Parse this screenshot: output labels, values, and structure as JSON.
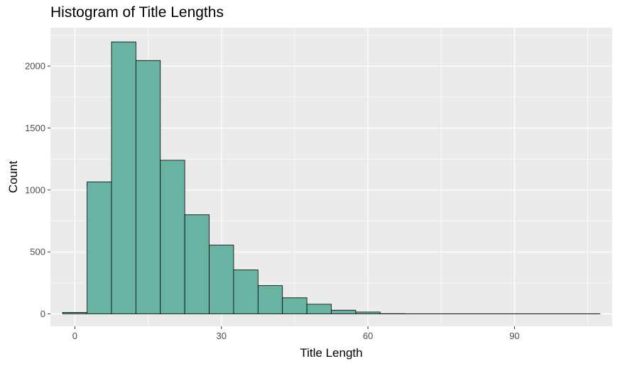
{
  "chart_data": {
    "type": "bar",
    "title": "Histogram of Title Lengths",
    "xlabel": "Title Length",
    "ylabel": "Count",
    "bin_width": 5,
    "bins": [
      {
        "x0": -2.5,
        "x1": 2.5,
        "count": 12
      },
      {
        "x0": 2.5,
        "x1": 7.5,
        "count": 1065
      },
      {
        "x0": 7.5,
        "x1": 12.5,
        "count": 2195
      },
      {
        "x0": 12.5,
        "x1": 17.5,
        "count": 2045
      },
      {
        "x0": 17.5,
        "x1": 22.5,
        "count": 1240
      },
      {
        "x0": 22.5,
        "x1": 27.5,
        "count": 800
      },
      {
        "x0": 27.5,
        "x1": 32.5,
        "count": 555
      },
      {
        "x0": 32.5,
        "x1": 37.5,
        "count": 355
      },
      {
        "x0": 37.5,
        "x1": 42.5,
        "count": 228
      },
      {
        "x0": 42.5,
        "x1": 47.5,
        "count": 130
      },
      {
        "x0": 47.5,
        "x1": 52.5,
        "count": 78
      },
      {
        "x0": 52.5,
        "x1": 57.5,
        "count": 30
      },
      {
        "x0": 57.5,
        "x1": 62.5,
        "count": 15
      },
      {
        "x0": 62.5,
        "x1": 67.5,
        "count": 2
      },
      {
        "x0": 67.5,
        "x1": 72.5,
        "count": 1
      },
      {
        "x0": 72.5,
        "x1": 77.5,
        "count": 1
      },
      {
        "x0": 77.5,
        "x1": 82.5,
        "count": 1
      },
      {
        "x0": 82.5,
        "x1": 87.5,
        "count": 1
      },
      {
        "x0": 87.5,
        "x1": 92.5,
        "count": 1
      },
      {
        "x0": 92.5,
        "x1": 97.5,
        "count": 1
      },
      {
        "x0": 97.5,
        "x1": 102.5,
        "count": 1
      },
      {
        "x0": 102.5,
        "x1": 107.5,
        "count": 1
      }
    ],
    "xlim": [
      -5,
      110
    ],
    "ylim": [
      -100,
      2310
    ],
    "x_ticks": [
      0,
      30,
      60,
      90
    ],
    "y_ticks": [
      0,
      500,
      1000,
      1500,
      2000
    ],
    "grid": true,
    "legend": "none",
    "colors": {
      "bar_fill": "#69b3a2",
      "bar_outline": "#000000",
      "panel_background": "#ebebeb",
      "grid_major": "#ffffff",
      "tick_text": "#4d4d4d"
    }
  }
}
